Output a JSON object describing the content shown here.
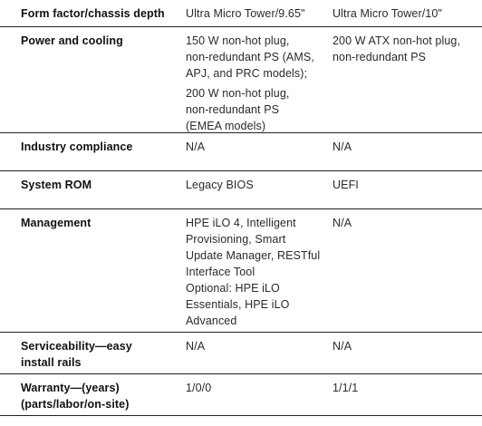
{
  "table": {
    "rows": [
      {
        "label": [
          "Form factor/chassis depth"
        ],
        "col2": [
          "Ultra Micro Tower/9.65\""
        ],
        "col3": [
          "Ultra Micro Tower/10\""
        ]
      },
      {
        "label": [
          "Power and cooling"
        ],
        "col2": [
          "150 W non-hot plug,",
          "non-redundant PS (AMS,",
          "APJ, and PRC models);",
          "",
          "200 W non-hot plug,",
          "non-redundant PS",
          "(EMEA models)"
        ],
        "col3": [
          "200 W ATX non-hot plug,",
          "non-redundant PS"
        ]
      },
      {
        "label": [
          "Industry compliance"
        ],
        "col2": [
          "N/A"
        ],
        "col3": [
          "N/A"
        ]
      },
      {
        "label": [
          "System ROM"
        ],
        "col2": [
          "Legacy BIOS"
        ],
        "col3": [
          "UEFI"
        ]
      },
      {
        "label": [
          "Management"
        ],
        "col2": [
          "HPE iLO 4, Intelligent",
          "Provisioning, Smart",
          "Update Manager, RESTful",
          "Interface Tool",
          "Optional: HPE iLO",
          "Essentials, HPE iLO",
          "Advanced"
        ],
        "col3": [
          "N/A"
        ]
      },
      {
        "label": [
          "Serviceability—easy",
          "install rails"
        ],
        "col2": [
          "N/A"
        ],
        "col3": [
          "N/A"
        ]
      },
      {
        "label": [
          "Warranty—(years)",
          "(parts/labor/on-site)"
        ],
        "col2": [
          "1/0/0"
        ],
        "col3": [
          "1/1/1"
        ]
      }
    ]
  }
}
